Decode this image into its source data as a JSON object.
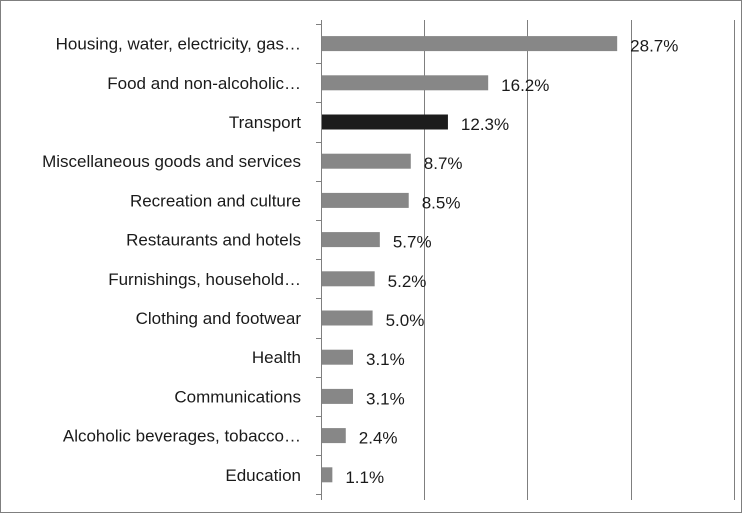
{
  "chart_data": {
    "type": "bar",
    "orientation": "horizontal",
    "categories": [
      "Housing, water, electricity, gas…",
      "Food and non-alcoholic…",
      "Transport",
      "Miscellaneous goods and services",
      "Recreation and culture",
      "Restaurants and hotels",
      "Furnishings, household…",
      "Clothing and footwear",
      "Health",
      "Communications",
      "Alcoholic beverages, tobacco…",
      "Education"
    ],
    "values": [
      28.7,
      16.2,
      12.3,
      8.7,
      8.5,
      5.7,
      5.2,
      5.0,
      3.1,
      3.1,
      2.4,
      1.1
    ],
    "value_labels": [
      "28.7%",
      "16.2%",
      "12.3%",
      "8.7%",
      "8.5%",
      "5.7%",
      "5.2%",
      "5.0%",
      "3.1%",
      "3.1%",
      "2.4%",
      "1.1%"
    ],
    "highlighted_category": "Transport",
    "colors": {
      "bar": "#878787",
      "highlight": "#1c1c1c",
      "grid": "#7f7f7f",
      "axis": "#7f7f7f",
      "frame": "#7f7f7f"
    },
    "xlim": [
      0,
      40
    ],
    "x_gridline_step": 10,
    "show_x_tick_labels": false,
    "grid": true,
    "legend": "none",
    "title": "",
    "xlabel": "",
    "ylabel": ""
  }
}
